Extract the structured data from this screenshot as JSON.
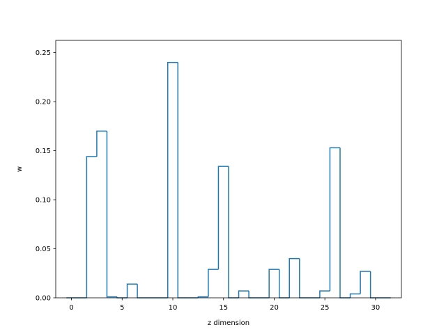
{
  "chart_data": {
    "type": "bar",
    "style": "step-histogram",
    "title": "",
    "xlabel": "z dimension",
    "ylabel": "w",
    "xlim": [
      -1.55,
      32.55
    ],
    "ylim": [
      0,
      0.2625
    ],
    "grid": false,
    "legend": "none",
    "x": [
      0,
      1,
      2,
      3,
      4,
      5,
      6,
      7,
      8,
      9,
      10,
      11,
      12,
      13,
      14,
      15,
      16,
      17,
      18,
      19,
      20,
      21,
      22,
      23,
      24,
      25,
      26,
      27,
      28,
      29,
      30,
      31
    ],
    "values": [
      0.0,
      0.0,
      0.144,
      0.17,
      0.001,
      0.0,
      0.014,
      0.0,
      0.0,
      0.0,
      0.24,
      0.0,
      0.0,
      0.001,
      0.029,
      0.134,
      0.0,
      0.007,
      0.0,
      0.0,
      0.029,
      0.0,
      0.04,
      0.0,
      0.0,
      0.007,
      0.153,
      0.0,
      0.004,
      0.027,
      0.0,
      0.0
    ],
    "x_ticks": [
      "0",
      "5",
      "10",
      "15",
      "20",
      "25",
      "30"
    ],
    "x_tick_values": [
      0,
      5,
      10,
      15,
      20,
      25,
      30
    ],
    "y_ticks": [
      "0.00",
      "0.05",
      "0.10",
      "0.15",
      "0.20",
      "0.25"
    ],
    "y_tick_values": [
      0,
      0.05,
      0.1,
      0.15,
      0.2,
      0.25
    ],
    "line_color": "#1f77b4"
  }
}
